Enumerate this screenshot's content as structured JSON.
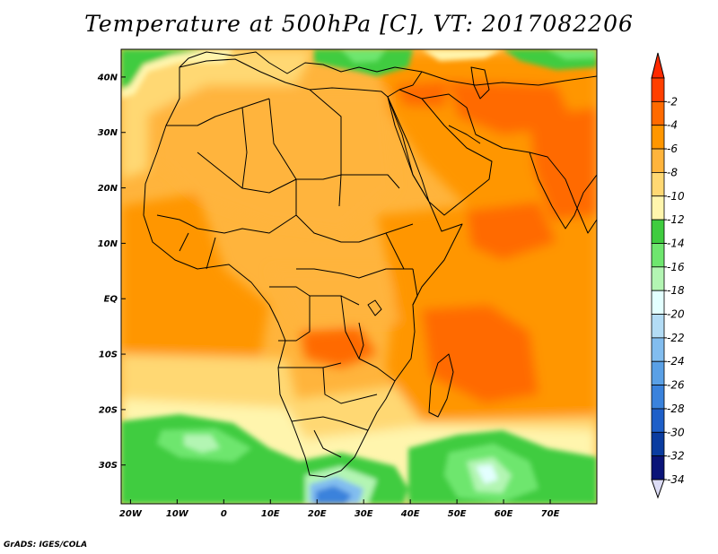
{
  "title": "Temperature at 500hPa [C], VT: 2017082206",
  "credit": "GrADS: IGES/COLA",
  "map": {
    "lon_range": [
      -22,
      80
    ],
    "lat_range": [
      -37,
      45
    ],
    "lon_ticks": [
      {
        "lon": -20,
        "label": "20W"
      },
      {
        "lon": -10,
        "label": "10W"
      },
      {
        "lon": 0,
        "label": "0"
      },
      {
        "lon": 10,
        "label": "10E"
      },
      {
        "lon": 20,
        "label": "20E"
      },
      {
        "lon": 30,
        "label": "30E"
      },
      {
        "lon": 40,
        "label": "40E"
      },
      {
        "lon": 50,
        "label": "50E"
      },
      {
        "lon": 60,
        "label": "60E"
      },
      {
        "lon": 70,
        "label": "70E"
      }
    ],
    "lat_ticks": [
      {
        "lat": 40,
        "label": "40N"
      },
      {
        "lat": 30,
        "label": "30N"
      },
      {
        "lat": 20,
        "label": "20N"
      },
      {
        "lat": 10,
        "label": "10N"
      },
      {
        "lat": 0,
        "label": "EQ"
      },
      {
        "lat": -10,
        "label": "10S"
      },
      {
        "lat": -20,
        "label": "20S"
      },
      {
        "lat": -30,
        "label": "30S"
      }
    ]
  },
  "colorbar": {
    "unit": "C",
    "bins": [
      {
        "label": "-2",
        "color": "#ff3f00"
      },
      {
        "label": "-4",
        "color": "#ff6a00"
      },
      {
        "label": "-6",
        "color": "#ff9600"
      },
      {
        "label": "-8",
        "color": "#ffb43c"
      },
      {
        "label": "-10",
        "color": "#ffd873"
      },
      {
        "label": "-12",
        "color": "#fff5ad"
      },
      {
        "label": "-14",
        "color": "#3fcc3f"
      },
      {
        "label": "-16",
        "color": "#6ee66e"
      },
      {
        "label": "-18",
        "color": "#b3f5b3"
      },
      {
        "label": "-20",
        "color": "#e3ffff"
      },
      {
        "label": "-22",
        "color": "#b3dcf5"
      },
      {
        "label": "-24",
        "color": "#82bdef"
      },
      {
        "label": "-26",
        "color": "#5aa0e6"
      },
      {
        "label": "-28",
        "color": "#3a82dc"
      },
      {
        "label": "-30",
        "color": "#1e5fc8"
      },
      {
        "label": "-32",
        "color": "#0a3ca0"
      },
      {
        "label": "-34",
        "color": "#0a1478"
      }
    ],
    "max_color": "#ff2a00",
    "min_color": "#dcdcf5"
  }
}
